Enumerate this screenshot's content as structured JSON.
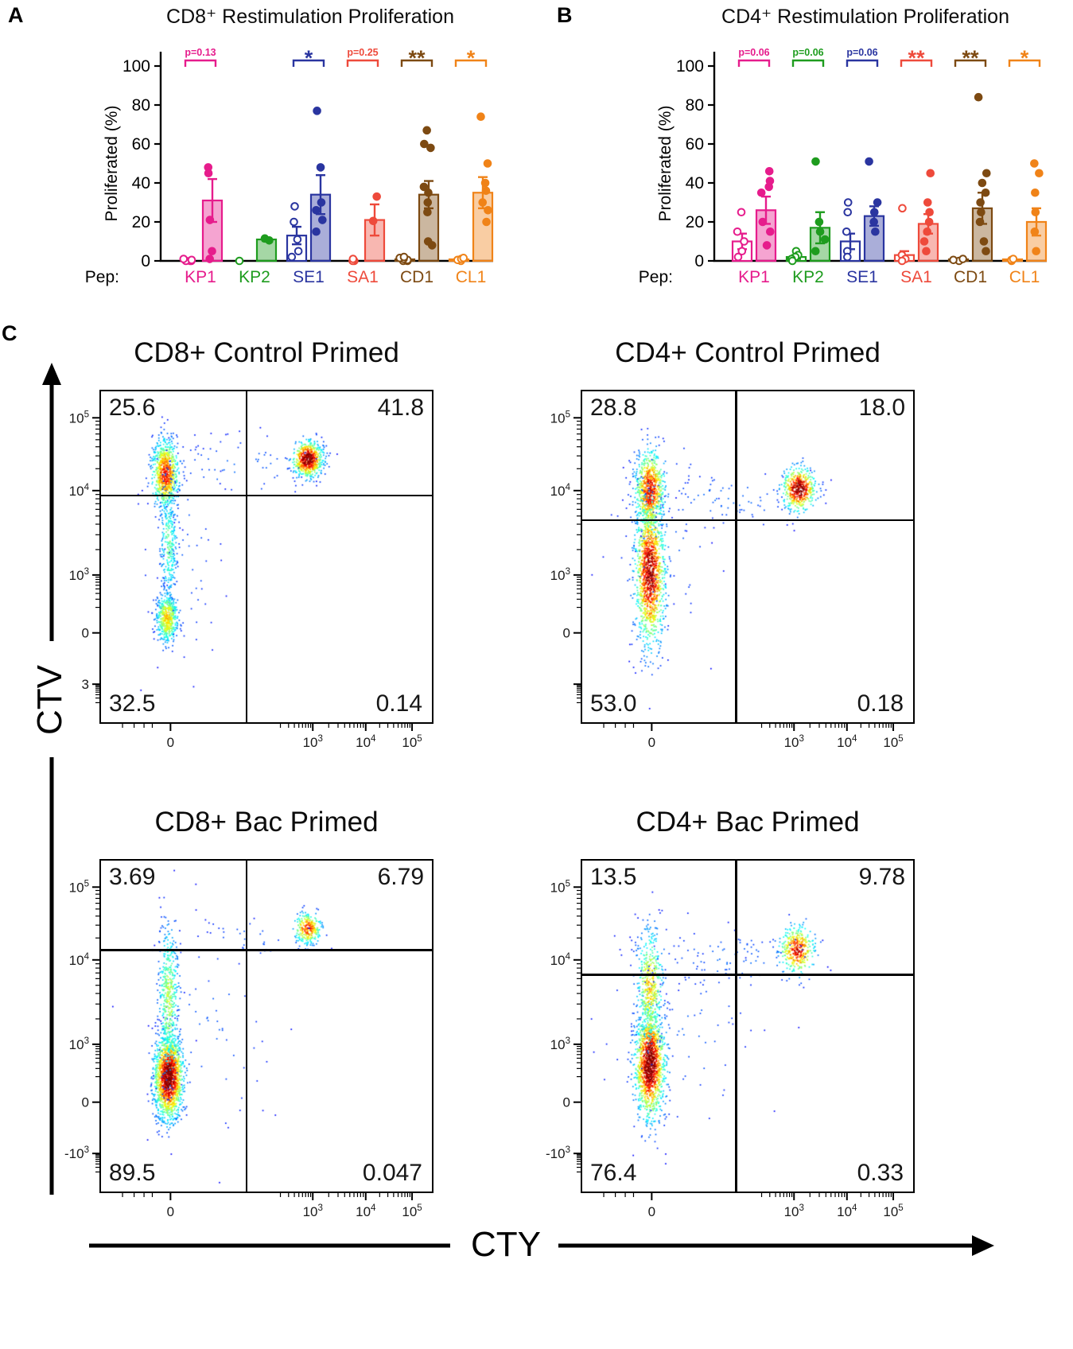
{
  "figure": {
    "background": "#ffffff",
    "panel_labels": {
      "a": "A",
      "b": "B",
      "c": "C"
    },
    "panelC": {
      "y_axis_label": "CTV",
      "x_axis_label": "CTY"
    }
  },
  "chart_data": [
    {
      "id": "cd8-restimulation-proliferation",
      "type": "bar",
      "title": "CD8⁺ Restimulation Proliferation",
      "ylabel": "Proliferated  (%)",
      "xlabel": "Pep:",
      "ylim": [
        0,
        100
      ],
      "yticks": [
        0,
        20,
        40,
        60,
        80,
        100
      ],
      "grid": false,
      "groups": [
        {
          "name": "KP1",
          "color": "#E61C8C",
          "significance": "p=0.13",
          "control": {
            "mean": 0.6,
            "sem": 0.3,
            "points": [
              0,
              0,
              0,
              0.5,
              1
            ]
          },
          "peptide": {
            "mean": 31,
            "sem": 11,
            "points": [
              48,
              45,
              21,
              5,
              1
            ]
          }
        },
        {
          "name": "KP2",
          "color": "#1E9C1E",
          "significance": "",
          "control": {
            "mean": 0.4,
            "sem": 0,
            "points": [
              0
            ]
          },
          "peptide": {
            "mean": 11,
            "sem": 0.8,
            "points": [
              11.5,
              10.5
            ]
          }
        },
        {
          "name": "SE1",
          "color": "#2A35A0",
          "significance": "*",
          "control": {
            "mean": 13,
            "sem": 4.5,
            "points": [
              28,
              20,
              11,
              5,
              2
            ]
          },
          "peptide": {
            "mean": 34,
            "sem": 10,
            "points": [
              77,
              48,
              30,
              26,
              21,
              15
            ]
          }
        },
        {
          "name": "SA1",
          "color": "#EE4A3B",
          "significance": "p=0.25",
          "control": {
            "mean": 0.6,
            "sem": 0.3,
            "points": [
              0,
              0,
              1
            ]
          },
          "peptide": {
            "mean": 21,
            "sem": 8,
            "points": [
              33,
              20.5
            ]
          }
        },
        {
          "name": "CD1",
          "color": "#7D4A12",
          "significance": "**",
          "control": {
            "mean": 0.8,
            "sem": 0.4,
            "points": [
              0,
              0,
              0.5,
              1,
              1.5,
              2
            ]
          },
          "peptide": {
            "mean": 34,
            "sem": 7,
            "points": [
              67,
              60,
              58,
              38,
              35,
              30,
              25,
              10,
              8
            ]
          }
        },
        {
          "name": "CL1",
          "color": "#F08318",
          "significance": "*",
          "control": {
            "mean": 0.8,
            "sem": 0.4,
            "points": [
              0,
              0.5,
              1,
              1.5
            ]
          },
          "peptide": {
            "mean": 35,
            "sem": 8,
            "points": [
              74,
              50,
              40,
              36,
              30,
              26,
              20
            ]
          }
        }
      ]
    },
    {
      "id": "cd4-restimulation-proliferation",
      "type": "bar",
      "title": "CD4⁺ Restimulation Proliferation",
      "ylabel": "Proliferated  (%)",
      "xlabel": "Pep:",
      "ylim": [
        0,
        100
      ],
      "yticks": [
        0,
        20,
        40,
        60,
        80,
        100
      ],
      "grid": false,
      "groups": [
        {
          "name": "KP1",
          "color": "#E61C8C",
          "significance": "p=0.06",
          "control": {
            "mean": 10,
            "sem": 4,
            "points": [
              25,
              15,
              10,
              5,
              2
            ]
          },
          "peptide": {
            "mean": 26,
            "sem": 7,
            "points": [
              46,
              41,
              38,
              35,
              20,
              15,
              8
            ]
          }
        },
        {
          "name": "KP2",
          "color": "#1E9C1E",
          "significance": "p=0.06",
          "control": {
            "mean": 2,
            "sem": 1,
            "points": [
              5,
              3,
              2,
              1,
              0
            ]
          },
          "peptide": {
            "mean": 17,
            "sem": 8,
            "points": [
              51,
              20,
              15,
              11,
              5
            ]
          }
        },
        {
          "name": "SE1",
          "color": "#2A35A0",
          "significance": "p=0.06",
          "control": {
            "mean": 10,
            "sem": 4,
            "points": [
              30,
              25,
              15,
              5,
              2
            ]
          },
          "peptide": {
            "mean": 23,
            "sem": 5,
            "points": [
              51,
              30,
              25,
              20,
              15
            ]
          }
        },
        {
          "name": "SA1",
          "color": "#EE4A3B",
          "significance": "**",
          "control": {
            "mean": 3,
            "sem": 2,
            "points": [
              27,
              3,
              1,
              0
            ]
          },
          "peptide": {
            "mean": 19,
            "sem": 5,
            "points": [
              45,
              30,
              25,
              20,
              15,
              10,
              5
            ]
          }
        },
        {
          "name": "CD1",
          "color": "#7D4A12",
          "significance": "**",
          "control": {
            "mean": 0.8,
            "sem": 0.4,
            "points": [
              0,
              0.5,
              1
            ]
          },
          "peptide": {
            "mean": 27,
            "sem": 8,
            "points": [
              84,
              45,
              40,
              35,
              30,
              25,
              20,
              10,
              5
            ]
          }
        },
        {
          "name": "CL1",
          "color": "#F08318",
          "significance": "*",
          "control": {
            "mean": 0.8,
            "sem": 0.4,
            "points": [
              0,
              0.5,
              1
            ]
          },
          "peptide": {
            "mean": 20,
            "sem": 7,
            "points": [
              50,
              45,
              35,
              25,
              15,
              5
            ]
          }
        }
      ]
    },
    {
      "id": "flow-cd8-control-primed",
      "type": "scatter",
      "title": "CD8+ Control Primed",
      "x_axis": "CTY",
      "y_axis": "CTV",
      "xticks": [
        "0",
        "10^3",
        "10^4",
        "10^5"
      ],
      "yticks": [
        "10^5",
        "10^4",
        "10^3",
        "0",
        "3"
      ],
      "quadrants": {
        "upper_left": "25.6",
        "upper_right": "41.8",
        "lower_left": "32.5",
        "lower_right": "0.14"
      },
      "gate": {
        "x_frac": 0.44,
        "y_frac": 0.315
      },
      "clusters": [
        {
          "cx": 0.195,
          "cy": 0.25,
          "sx": 0.02,
          "sy": 0.05,
          "n": 850,
          "heat": 0.8
        },
        {
          "cx": 0.205,
          "cy": 0.46,
          "sx": 0.013,
          "sy": 0.09,
          "n": 320,
          "heat": 0.4
        },
        {
          "cx": 0.2,
          "cy": 0.685,
          "sx": 0.016,
          "sy": 0.038,
          "n": 520,
          "heat": 0.62
        },
        {
          "cx": 0.625,
          "cy": 0.205,
          "sx": 0.022,
          "sy": 0.026,
          "n": 680,
          "heat": 1.0
        },
        {
          "cx": 0.42,
          "cy": 0.23,
          "sx": 0.12,
          "sy": 0.05,
          "n": 60,
          "heat": 0.12
        },
        {
          "cx": 0.24,
          "cy": 0.45,
          "sx": 0.07,
          "sy": 0.2,
          "n": 70,
          "heat": 0.1
        }
      ]
    },
    {
      "id": "flow-cd4-control-primed",
      "type": "scatter",
      "title": "CD4+ Control Primed",
      "x_axis": "CTY",
      "y_axis": "CTV",
      "xticks": [
        "0",
        "10^3",
        "10^4",
        "10^5"
      ],
      "yticks": [
        "10^5",
        "10^4",
        "10^3",
        "0",
        ""
      ],
      "quadrants": {
        "upper_left": "28.8",
        "upper_right": "18.0",
        "lower_left": "53.0",
        "lower_right": "0.18"
      },
      "gate": {
        "x_frac": 0.465,
        "y_frac": 0.39
      },
      "clusters": [
        {
          "cx": 0.205,
          "cy": 0.3,
          "sx": 0.022,
          "sy": 0.06,
          "n": 850,
          "heat": 0.85
        },
        {
          "cx": 0.205,
          "cy": 0.55,
          "sx": 0.022,
          "sy": 0.105,
          "n": 1400,
          "heat": 0.95
        },
        {
          "cx": 0.655,
          "cy": 0.295,
          "sx": 0.024,
          "sy": 0.032,
          "n": 520,
          "heat": 1.0
        },
        {
          "cx": 0.43,
          "cy": 0.33,
          "sx": 0.13,
          "sy": 0.045,
          "n": 80,
          "heat": 0.12
        },
        {
          "cx": 0.25,
          "cy": 0.42,
          "sx": 0.09,
          "sy": 0.18,
          "n": 60,
          "heat": 0.1
        }
      ]
    },
    {
      "id": "flow-cd8-bac-primed",
      "type": "scatter",
      "title": "CD8+ Bac Primed",
      "x_axis": "CTY",
      "y_axis": "CTV",
      "xticks": [
        "0",
        "10^3",
        "10^4",
        "10^5"
      ],
      "yticks": [
        "10^5",
        "10^4",
        "10^3",
        "0",
        "-10^3"
      ],
      "quadrants": {
        "upper_left": "3.69",
        "upper_right": "6.79",
        "lower_left": "89.5",
        "lower_right": "0.047"
      },
      "gate": {
        "x_frac": 0.44,
        "y_frac": 0.27
      },
      "clusters": [
        {
          "cx": 0.205,
          "cy": 0.655,
          "sx": 0.021,
          "sy": 0.062,
          "n": 1700,
          "heat": 1.0
        },
        {
          "cx": 0.205,
          "cy": 0.42,
          "sx": 0.015,
          "sy": 0.115,
          "n": 520,
          "heat": 0.5
        },
        {
          "cx": 0.625,
          "cy": 0.205,
          "sx": 0.02,
          "sy": 0.023,
          "n": 280,
          "heat": 0.8
        },
        {
          "cx": 0.33,
          "cy": 0.5,
          "sx": 0.1,
          "sy": 0.17,
          "n": 60,
          "heat": 0.1
        },
        {
          "cx": 0.43,
          "cy": 0.24,
          "sx": 0.1,
          "sy": 0.04,
          "n": 30,
          "heat": 0.1
        }
      ]
    },
    {
      "id": "flow-cd4-bac-primed",
      "type": "scatter",
      "title": "CD4+ Bac Primed",
      "x_axis": "CTY",
      "y_axis": "CTV",
      "xticks": [
        "0",
        "10^3",
        "10^4",
        "10^5"
      ],
      "yticks": [
        "10^5",
        "10^4",
        "10^3",
        "0",
        "-10^3"
      ],
      "quadrants": {
        "upper_left": "13.5",
        "upper_right": "9.78",
        "lower_left": "76.4",
        "lower_right": "0.33"
      },
      "gate": {
        "x_frac": 0.465,
        "y_frac": 0.345
      },
      "clusters": [
        {
          "cx": 0.205,
          "cy": 0.615,
          "sx": 0.022,
          "sy": 0.08,
          "n": 1550,
          "heat": 1.0
        },
        {
          "cx": 0.205,
          "cy": 0.38,
          "sx": 0.02,
          "sy": 0.085,
          "n": 480,
          "heat": 0.62
        },
        {
          "cx": 0.65,
          "cy": 0.27,
          "sx": 0.026,
          "sy": 0.036,
          "n": 400,
          "heat": 0.85
        },
        {
          "cx": 0.45,
          "cy": 0.3,
          "sx": 0.13,
          "sy": 0.05,
          "n": 90,
          "heat": 0.12
        },
        {
          "cx": 0.3,
          "cy": 0.5,
          "sx": 0.12,
          "sy": 0.18,
          "n": 80,
          "heat": 0.1
        }
      ]
    }
  ]
}
